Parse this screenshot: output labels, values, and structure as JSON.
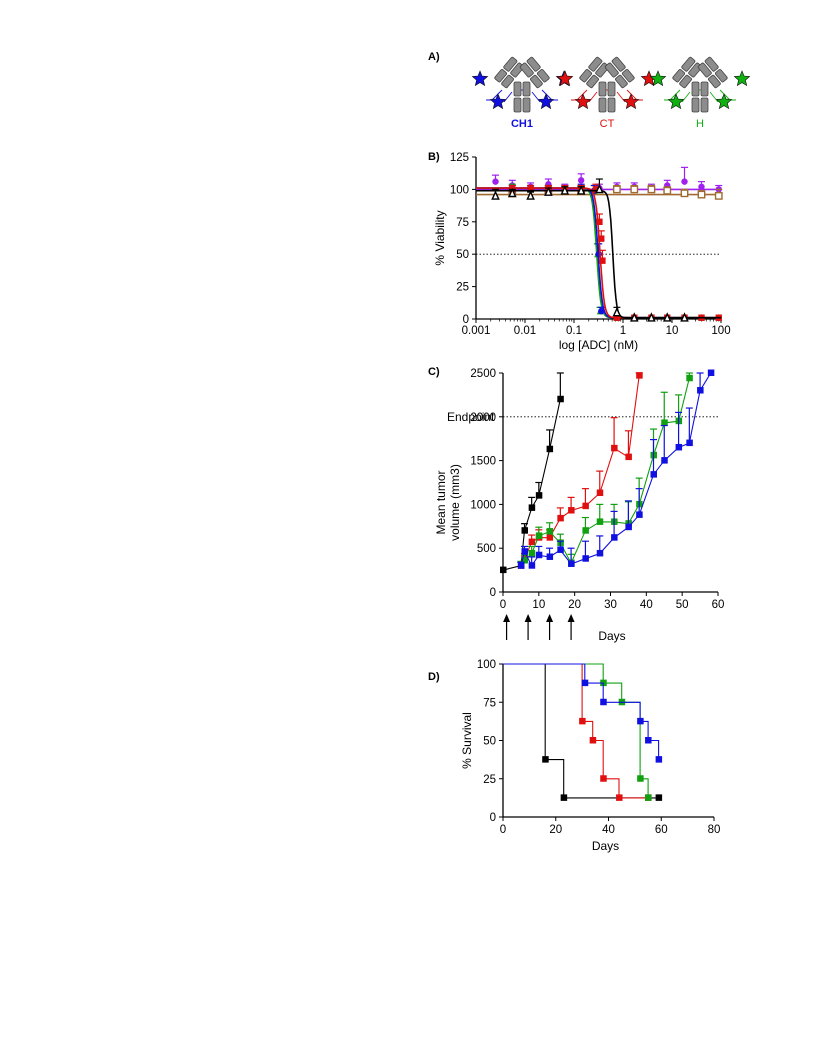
{
  "panels": {
    "a": "A)",
    "b": "B)",
    "c": "C)",
    "d": "D)"
  },
  "antibodies": [
    {
      "label": "CH1",
      "color": "#1010e0",
      "bold": true
    },
    {
      "label": "CT",
      "color": "#e01010",
      "bold": false
    },
    {
      "label": "H",
      "color": "#10b010",
      "bold": false
    }
  ],
  "chart_data": [
    {
      "id": "viability",
      "type": "scatter",
      "xscale": "log",
      "xlim": [
        0.001,
        100
      ],
      "ylim": [
        0,
        125
      ],
      "xticks": [
        0.001,
        0.01,
        0.1,
        1,
        10,
        100
      ],
      "xtick_labels": [
        "0.001",
        "0.01",
        "0.1",
        "1",
        "10",
        "100"
      ],
      "yticks": [
        0,
        25,
        50,
        75,
        100,
        125
      ],
      "xlabel": "log [ADC] (nM)",
      "ylabel": "% Viability",
      "reference_line_y": 50,
      "series": [
        {
          "color": "#a020f0",
          "marker": "circle",
          "fit": "flat",
          "top": 100,
          "x": [
            0.0025,
            0.0055,
            0.013,
            0.03,
            0.065,
            0.14,
            0.33,
            0.75,
            1.7,
            3.8,
            8,
            18,
            40,
            90
          ],
          "y": [
            106,
            103,
            102,
            104,
            101,
            107,
            101,
            102,
            102,
            101,
            103,
            106,
            102,
            100
          ],
          "err": [
            5,
            4,
            3,
            4,
            3,
            5,
            3,
            3,
            3,
            3,
            4,
            11,
            4,
            3
          ]
        },
        {
          "color": "#a06a30",
          "marker": "square-open",
          "fit": "flat",
          "top": 96,
          "x": [
            0.0055,
            0.03,
            0.14,
            0.75,
            1.7,
            3.8,
            8,
            18,
            40,
            90
          ],
          "y": [
            97,
            99,
            100,
            100,
            100,
            100,
            99,
            97,
            96,
            95
          ],
          "err": [
            3,
            3,
            3,
            3,
            3,
            3,
            3,
            3,
            3,
            5
          ]
        },
        {
          "color": "#10a010",
          "marker": "triangle",
          "fit": "sigmoid",
          "top": 101,
          "bottom": 1,
          "ec50": 0.29,
          "hill": 10,
          "x": [
            0.0055,
            0.013,
            0.03,
            0.065,
            0.14,
            0.26,
            0.3,
            0.34,
            0.75,
            1.7,
            3.8,
            8,
            18,
            40,
            90
          ],
          "y": [
            101,
            100,
            100,
            99,
            100,
            99,
            50,
            6,
            1,
            1,
            1,
            1,
            1,
            1,
            1
          ],
          "err": [
            3,
            3,
            3,
            3,
            3,
            4,
            8,
            3,
            1,
            1,
            1,
            1,
            1,
            1,
            1
          ]
        },
        {
          "color": "#1010e0",
          "marker": "circle",
          "fit": "sigmoid",
          "top": 101,
          "bottom": 1,
          "ec50": 0.31,
          "hill": 10,
          "x": [
            0.0055,
            0.013,
            0.03,
            0.065,
            0.14,
            0.26,
            0.32,
            0.36,
            0.75,
            1.7,
            3.8,
            8,
            18,
            40,
            90
          ],
          "y": [
            100,
            100,
            100,
            100,
            101,
            99,
            50,
            6,
            1,
            1,
            1,
            1,
            1,
            1,
            1
          ],
          "err": [
            3,
            3,
            3,
            3,
            3,
            4,
            8,
            3,
            1,
            1,
            1,
            1,
            1,
            1,
            1
          ]
        },
        {
          "color": "#e01010",
          "marker": "square",
          "fit": "sigmoid",
          "top": 101,
          "bottom": 1,
          "ec50": 0.34,
          "hill": 10,
          "x": [
            0.0055,
            0.013,
            0.03,
            0.065,
            0.14,
            0.28,
            0.33,
            0.36,
            0.38,
            0.75,
            1.7,
            3.8,
            8,
            18,
            40,
            90
          ],
          "y": [
            100,
            100,
            100,
            100,
            100,
            100,
            75,
            62,
            45,
            1,
            1,
            1,
            1,
            1,
            1,
            1
          ],
          "err": [
            3,
            3,
            3,
            3,
            3,
            4,
            6,
            6,
            8,
            1,
            1,
            1,
            1,
            1,
            1,
            1
          ]
        },
        {
          "color": "#000000",
          "marker": "triangle-open",
          "fit": "sigmoid",
          "top": 99,
          "bottom": 1,
          "ec50": 0.62,
          "hill": 12,
          "x": [
            0.0025,
            0.0055,
            0.013,
            0.03,
            0.065,
            0.14,
            0.33,
            0.75,
            1.7,
            3.8,
            8,
            18
          ],
          "y": [
            95,
            97,
            95,
            98,
            99,
            99,
            100,
            5,
            1,
            1,
            1,
            1
          ],
          "err": [
            5,
            3,
            3,
            3,
            3,
            3,
            8,
            4,
            1,
            1,
            1,
            1
          ]
        }
      ]
    },
    {
      "id": "tumor-volume",
      "type": "line",
      "xlim": [
        0,
        60
      ],
      "ylim": [
        0,
        2500
      ],
      "xticks": [
        0,
        10,
        20,
        30,
        40,
        50,
        60
      ],
      "yticks": [
        0,
        500,
        1000,
        1500,
        2000,
        2500
      ],
      "xlabel": "Days",
      "ylabel": "Mean tumor volume (mm3)",
      "endpoint_y": 2000,
      "endpoint_label": "Endpoint",
      "dose_days": [
        1,
        7,
        13,
        19
      ],
      "series": [
        {
          "color": "#000000",
          "x": [
            0,
            5,
            6,
            8,
            10,
            13,
            16
          ],
          "y": [
            250,
            300,
            700,
            960,
            1100,
            1630,
            2200
          ],
          "err": [
            0,
            40,
            80,
            120,
            150,
            220,
            300
          ]
        },
        {
          "color": "#e01010",
          "x": [
            5,
            6,
            8,
            10,
            13,
            16,
            19,
            23,
            27,
            31,
            35,
            38
          ],
          "y": [
            300,
            380,
            570,
            620,
            620,
            840,
            930,
            980,
            1130,
            1640,
            1540,
            2470
          ],
          "err": [
            40,
            60,
            80,
            90,
            90,
            120,
            150,
            200,
            250,
            350,
            300,
            80
          ]
        },
        {
          "color": "#10a010",
          "x": [
            5,
            6,
            8,
            10,
            13,
            16,
            19,
            23,
            27,
            31,
            35,
            38,
            42,
            45,
            49,
            52
          ],
          "y": [
            310,
            360,
            440,
            640,
            690,
            560,
            330,
            700,
            800,
            800,
            780,
            1000,
            1560,
            1930,
            1950,
            2440
          ],
          "err": [
            40,
            60,
            80,
            100,
            100,
            100,
            100,
            150,
            200,
            200,
            250,
            300,
            300,
            350,
            300,
            200
          ]
        },
        {
          "color": "#1010e0",
          "x": [
            5,
            6,
            8,
            10,
            13,
            16,
            19,
            23,
            27,
            31,
            35,
            38,
            42,
            45,
            49,
            52,
            55,
            58
          ],
          "y": [
            300,
            460,
            300,
            420,
            400,
            480,
            320,
            380,
            440,
            620,
            740,
            880,
            1340,
            1500,
            1650,
            1700,
            2300,
            2500
          ],
          "err": [
            40,
            60,
            100,
            100,
            100,
            100,
            180,
            200,
            200,
            300,
            300,
            300,
            400,
            400,
            400,
            400,
            300,
            0
          ]
        }
      ]
    },
    {
      "id": "survival",
      "type": "line",
      "step": true,
      "xlim": [
        0,
        80
      ],
      "ylim": [
        0,
        100
      ],
      "xticks": [
        0,
        20,
        40,
        60,
        80
      ],
      "yticks": [
        0,
        25,
        50,
        75,
        100
      ],
      "xlabel": "Days",
      "ylabel": "% Survival",
      "series": [
        {
          "color": "#000000",
          "x": [
            0,
            16,
            23,
            59
          ],
          "y": [
            100,
            37.5,
            12.5,
            12.5
          ]
        },
        {
          "color": "#e01010",
          "x": [
            0,
            30,
            34,
            38,
            44,
            55
          ],
          "y": [
            100,
            62.5,
            50,
            25,
            12.5,
            12.5
          ]
        },
        {
          "color": "#10a010",
          "x": [
            0,
            38,
            45,
            52,
            55
          ],
          "y": [
            100,
            87.5,
            75,
            25,
            12.5
          ]
        },
        {
          "color": "#1010e0",
          "x": [
            0,
            31,
            38,
            52,
            55,
            59
          ],
          "y": [
            100,
            87.5,
            75,
            62.5,
            50,
            37.5
          ]
        }
      ]
    }
  ]
}
